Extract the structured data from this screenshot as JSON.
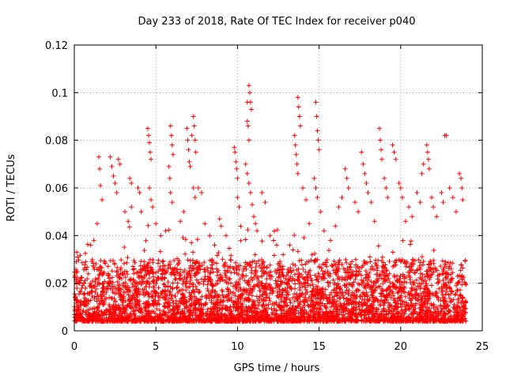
{
  "chart_data": {
    "type": "scatter",
    "title": "Day 233 of 2018, Rate Of TEC Index for receiver p040",
    "xlabel": "GPS time / hours",
    "ylabel": "ROTI / TECUs",
    "xlim": [
      0,
      25
    ],
    "ylim": [
      0,
      0.12
    ],
    "xticks": [
      0,
      5,
      10,
      15,
      20,
      25
    ],
    "xtick_labels": [
      "0",
      "5",
      "10",
      "15",
      "20",
      "25"
    ],
    "yticks": [
      0,
      0.02,
      0.04,
      0.06,
      0.08,
      0.1,
      0.12
    ],
    "ytick_labels": [
      "0",
      "0.02",
      "0.04",
      "0.06",
      "0.08",
      "0.1",
      "0.12"
    ],
    "grid": true,
    "marker": "+",
    "color": "#ff0000",
    "series": [
      {
        "name": "ROTI",
        "note": "dense field of ~0.005-0.03 TECU/s between 0 and 24 h; below are representative high-value points (traced satellite arcs)",
        "points": [
          [
            0.15,
            0.033
          ],
          [
            0.2,
            0.031
          ],
          [
            0.3,
            0.02
          ],
          [
            0.5,
            0.019
          ],
          [
            1.0,
            0.036
          ],
          [
            1.2,
            0.038
          ],
          [
            1.4,
            0.045
          ],
          [
            1.5,
            0.073
          ],
          [
            1.55,
            0.068
          ],
          [
            1.6,
            0.061
          ],
          [
            1.7,
            0.055
          ],
          [
            2.2,
            0.073
          ],
          [
            2.3,
            0.069
          ],
          [
            2.4,
            0.065
          ],
          [
            2.5,
            0.062
          ],
          [
            2.6,
            0.058
          ],
          [
            2.7,
            0.072
          ],
          [
            2.8,
            0.07
          ],
          [
            3.1,
            0.05
          ],
          [
            3.3,
            0.046
          ],
          [
            3.5,
            0.052
          ],
          [
            3.4,
            0.064
          ],
          [
            3.5,
            0.062
          ],
          [
            3.9,
            0.06
          ],
          [
            4.0,
            0.058
          ],
          [
            4.1,
            0.05
          ],
          [
            4.5,
            0.085
          ],
          [
            4.55,
            0.082
          ],
          [
            4.6,
            0.079
          ],
          [
            4.65,
            0.075
          ],
          [
            4.7,
            0.072
          ],
          [
            4.6,
            0.06
          ],
          [
            4.7,
            0.055
          ],
          [
            4.8,
            0.052
          ],
          [
            5.0,
            0.045
          ],
          [
            5.3,
            0.04
          ],
          [
            5.6,
            0.042
          ],
          [
            5.8,
            0.069
          ],
          [
            5.85,
            0.064
          ],
          [
            5.9,
            0.058
          ],
          [
            6.0,
            0.054
          ],
          [
            5.9,
            0.086
          ],
          [
            5.95,
            0.082
          ],
          [
            6.0,
            0.078
          ],
          [
            6.05,
            0.074
          ],
          [
            6.5,
            0.046
          ],
          [
            6.7,
            0.05
          ],
          [
            6.9,
            0.085
          ],
          [
            6.95,
            0.08
          ],
          [
            7.0,
            0.076
          ],
          [
            7.05,
            0.071
          ],
          [
            7.1,
            0.069
          ],
          [
            7.2,
            0.082
          ],
          [
            7.3,
            0.09
          ],
          [
            7.35,
            0.086
          ],
          [
            7.4,
            0.08
          ],
          [
            7.45,
            0.075
          ],
          [
            7.3,
            0.06
          ],
          [
            7.4,
            0.056
          ],
          [
            7.6,
            0.06
          ],
          [
            7.8,
            0.058
          ],
          [
            8.0,
            0.045
          ],
          [
            8.3,
            0.04
          ],
          [
            8.6,
            0.036
          ],
          [
            8.9,
            0.047
          ],
          [
            9.0,
            0.044
          ],
          [
            9.3,
            0.04
          ],
          [
            9.8,
            0.077
          ],
          [
            9.85,
            0.075
          ],
          [
            9.9,
            0.071
          ],
          [
            9.95,
            0.068
          ],
          [
            10.0,
            0.064
          ],
          [
            10.0,
            0.056
          ],
          [
            10.1,
            0.052
          ],
          [
            10.6,
            0.096
          ],
          [
            10.7,
            0.103
          ],
          [
            10.75,
            0.1
          ],
          [
            10.8,
            0.096
          ],
          [
            10.85,
            0.093
          ],
          [
            10.6,
            0.088
          ],
          [
            10.65,
            0.086
          ],
          [
            10.7,
            0.08
          ],
          [
            10.5,
            0.07
          ],
          [
            10.6,
            0.066
          ],
          [
            10.7,
            0.062
          ],
          [
            10.8,
            0.058
          ],
          [
            10.9,
            0.053
          ],
          [
            11.0,
            0.048
          ],
          [
            11.1,
            0.045
          ],
          [
            11.2,
            0.042
          ],
          [
            11.5,
            0.058
          ],
          [
            11.7,
            0.054
          ],
          [
            12.0,
            0.04
          ],
          [
            12.4,
            0.036
          ],
          [
            12.8,
            0.032
          ],
          [
            13.2,
            0.036
          ],
          [
            13.4,
            0.034
          ],
          [
            13.5,
            0.082
          ],
          [
            13.55,
            0.078
          ],
          [
            13.6,
            0.074
          ],
          [
            13.65,
            0.07
          ],
          [
            13.7,
            0.066
          ],
          [
            13.7,
            0.098
          ],
          [
            13.75,
            0.094
          ],
          [
            13.8,
            0.09
          ],
          [
            13.85,
            0.086
          ],
          [
            14.0,
            0.06
          ],
          [
            14.2,
            0.055
          ],
          [
            14.4,
            0.045
          ],
          [
            14.8,
            0.096
          ],
          [
            14.85,
            0.09
          ],
          [
            14.9,
            0.084
          ],
          [
            14.95,
            0.08
          ],
          [
            15.0,
            0.076
          ],
          [
            14.7,
            0.064
          ],
          [
            14.8,
            0.06
          ],
          [
            14.9,
            0.056
          ],
          [
            15.1,
            0.05
          ],
          [
            15.3,
            0.042
          ],
          [
            15.7,
            0.038
          ],
          [
            16.0,
            0.044
          ],
          [
            16.2,
            0.052
          ],
          [
            16.4,
            0.056
          ],
          [
            16.6,
            0.068
          ],
          [
            16.7,
            0.064
          ],
          [
            16.8,
            0.06
          ],
          [
            17.2,
            0.054
          ],
          [
            17.4,
            0.05
          ],
          [
            17.6,
            0.075
          ],
          [
            17.7,
            0.07
          ],
          [
            17.8,
            0.066
          ],
          [
            17.9,
            0.062
          ],
          [
            18.0,
            0.058
          ],
          [
            18.2,
            0.054
          ],
          [
            18.4,
            0.046
          ],
          [
            18.7,
            0.085
          ],
          [
            18.75,
            0.08
          ],
          [
            18.8,
            0.076
          ],
          [
            18.85,
            0.072
          ],
          [
            19.0,
            0.064
          ],
          [
            19.1,
            0.06
          ],
          [
            19.2,
            0.056
          ],
          [
            19.5,
            0.078
          ],
          [
            19.6,
            0.075
          ],
          [
            19.7,
            0.072
          ],
          [
            19.9,
            0.062
          ],
          [
            20.0,
            0.06
          ],
          [
            20.1,
            0.056
          ],
          [
            20.3,
            0.046
          ],
          [
            20.5,
            0.052
          ],
          [
            20.7,
            0.048
          ],
          [
            21.0,
            0.058
          ],
          [
            21.2,
            0.054
          ],
          [
            21.3,
            0.066
          ],
          [
            21.4,
            0.07
          ],
          [
            21.6,
            0.078
          ],
          [
            21.65,
            0.075
          ],
          [
            21.7,
            0.072
          ],
          [
            21.75,
            0.068
          ],
          [
            21.9,
            0.056
          ],
          [
            22.0,
            0.052
          ],
          [
            22.2,
            0.048
          ],
          [
            22.5,
            0.058
          ],
          [
            22.6,
            0.054
          ],
          [
            22.7,
            0.082
          ],
          [
            22.8,
            0.082
          ],
          [
            23.0,
            0.06
          ],
          [
            23.2,
            0.056
          ],
          [
            23.4,
            0.05
          ],
          [
            23.6,
            0.066
          ],
          [
            23.7,
            0.064
          ],
          [
            23.75,
            0.06
          ],
          [
            23.8,
            0.055
          ]
        ]
      }
    ]
  }
}
